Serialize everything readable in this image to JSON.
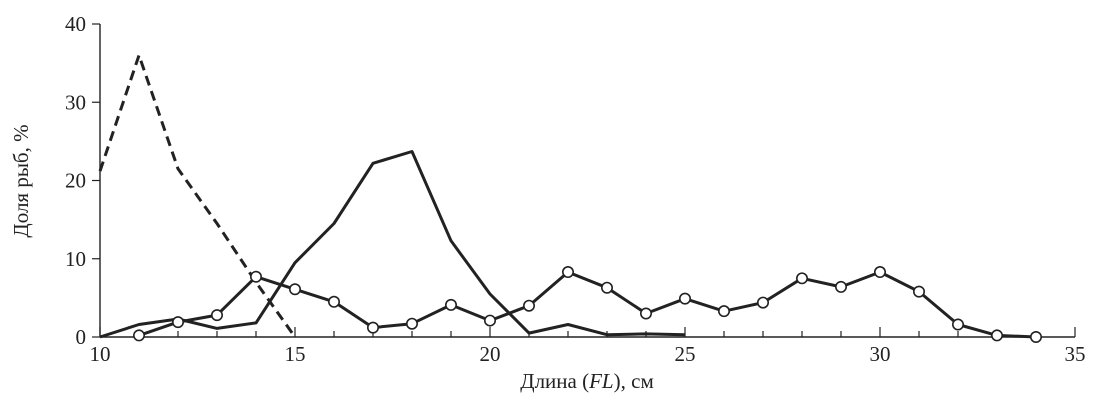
{
  "chart_data": {
    "type": "line",
    "title": "",
    "xlabel_parts": [
      "Длина (",
      "FL",
      "), см"
    ],
    "ylabel": "Доля рыб, %",
    "xlim": [
      10,
      35
    ],
    "ylim": [
      0,
      40
    ],
    "x_ticks": [
      10,
      15,
      20,
      25,
      30,
      35
    ],
    "y_ticks": [
      0,
      10,
      20,
      30,
      40
    ],
    "x_minor_step": 1,
    "grid": false,
    "series": [
      {
        "style": "dashed",
        "x": [
          10,
          11,
          12,
          13,
          14,
          15
        ],
        "values": [
          21.2,
          36,
          21.5,
          14.5,
          7,
          0
        ]
      },
      {
        "style": "solid",
        "x": [
          10,
          11,
          12,
          13,
          14,
          15,
          16,
          17,
          18,
          19,
          20,
          21,
          22,
          23,
          24,
          25
        ],
        "values": [
          0,
          1.6,
          2.3,
          1.1,
          1.8,
          9.5,
          14.5,
          22.2,
          23.7,
          12.3,
          5.5,
          0.5,
          1.6,
          0.3,
          0.4,
          0.3
        ]
      },
      {
        "style": "solid-markers",
        "x": [
          11,
          12,
          13,
          14,
          15,
          16,
          17,
          18,
          19,
          20,
          21,
          22,
          23,
          24,
          25,
          26,
          27,
          28,
          29,
          30,
          31,
          32,
          33,
          34
        ],
        "values": [
          0.2,
          1.9,
          2.8,
          7.7,
          6.1,
          4.5,
          1.2,
          1.7,
          4.1,
          2.1,
          4.0,
          8.3,
          6.3,
          3.0,
          4.9,
          3.3,
          4.4,
          7.5,
          6.4,
          8.3,
          5.8,
          1.6,
          0.2,
          0
        ]
      }
    ]
  }
}
